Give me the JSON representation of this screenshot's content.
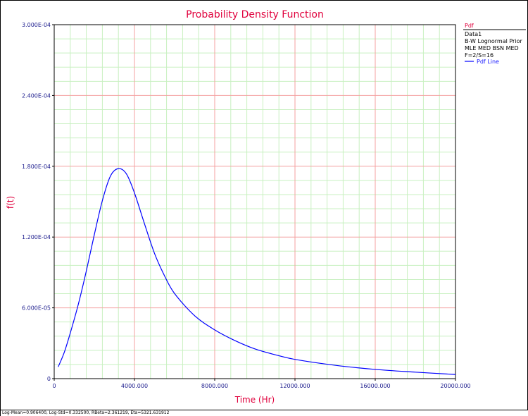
{
  "chart_data": {
    "type": "line",
    "title": "Probability Density Function",
    "xlabel": "Time (Hr)",
    "ylabel": "f(t)",
    "xlim": [
      0,
      20000
    ],
    "ylim": [
      0,
      0.0003
    ],
    "x_ticks": [
      "0",
      "4000.000",
      "8000.000",
      "12000.000",
      "16000.000",
      "20000.000"
    ],
    "y_ticks": [
      "0",
      "6.000E-05",
      "1.200E-04",
      "1.800E-04",
      "2.400E-04",
      "3.000E-04"
    ],
    "grid": true,
    "legend_position": "right",
    "series": [
      {
        "name": "Pdf Line",
        "color": "#0000ff",
        "x": [
          200,
          500,
          800,
          1200,
          1600,
          2000,
          2400,
          2800,
          3200,
          3600,
          4000,
          4500,
          5000,
          5500,
          6000,
          7000,
          8000,
          9000,
          10000,
          11000,
          12000,
          14000,
          16000,
          18000,
          20000
        ],
        "y": [
          1e-05,
          2.22e-05,
          3.86e-05,
          6.29e-05,
          9.12e-05,
          0.0001221,
          0.0001509,
          0.0001716,
          0.000178,
          0.0001735,
          0.0001574,
          0.0001312,
          0.0001061,
          8.71e-05,
          7.21e-05,
          5.33e-05,
          4.13e-05,
          3.23e-05,
          2.52e-05,
          2.03e-05,
          1.63e-05,
          1.13e-05,
          7.8e-06,
          5.5e-06,
          3.5e-06
        ]
      }
    ]
  },
  "legend": {
    "header": "Pdf",
    "lines": [
      "Data1",
      "B-W Lognormal Prior",
      "MLE MED BSN MED",
      "F=2/S=16"
    ],
    "series_label": "Pdf Line"
  },
  "status_text": "Log-Mean=0.906400, Log-Std=0.332500, RBeta=2.361219, Eta=5321.631912",
  "colors": {
    "major_grid": "#f4a0a0",
    "minor_grid": "#c8f0c0",
    "plot_border": "#000000",
    "title": "#e0003c",
    "tick_text": "#1a1a8c"
  }
}
